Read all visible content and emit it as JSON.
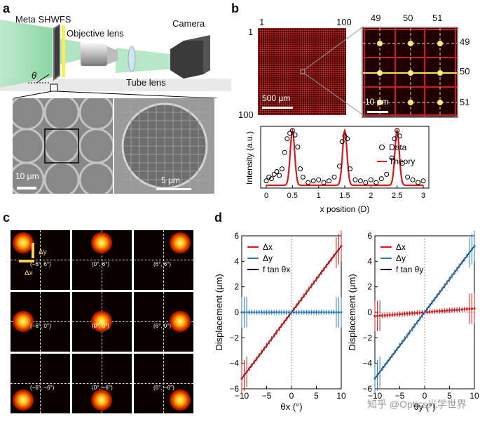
{
  "panels": {
    "a": "a",
    "b": "b",
    "c": "c",
    "d": "d"
  },
  "panel_a": {
    "label_meta": "Meta SHWFS",
    "label_objective": "Objective lens",
    "label_camera": "Camera",
    "label_tube": "Tube lens",
    "label_theta": "θ",
    "scalebar_left": "10 μm",
    "scalebar_right": "5 μm"
  },
  "panel_b": {
    "big_top_left": "1",
    "big_top_right": "100",
    "big_left_top": "1",
    "big_left_bottom": "100",
    "big_scalebar": "500 μm",
    "zoom_cols": [
      "49",
      "50",
      "51"
    ],
    "zoom_rows": [
      "49",
      "50",
      "51"
    ],
    "zoom_scalebar": "10 μm"
  },
  "panel_c": {
    "labels": [
      "(−6°, 6°)",
      "(0°, 6°)",
      "(6°, 6°)",
      "(−6°, 0°)",
      "(0°, 0°)",
      "(6°, 0°)",
      "(−6°, −6°)",
      "(0°, −6°)",
      "(6°, −6°)"
    ],
    "arrow_dy": "Δy",
    "arrow_dx": "Δx"
  },
  "colors": {
    "red_curve": "#d7191c",
    "blue_curve": "#2c7bb6",
    "heat": "#ffdd55"
  },
  "watermark": "知乎 @Optics光学世界",
  "chart_data": [
    {
      "type": "line",
      "id": "b-intensity",
      "title": "",
      "xlabel": "x position (D)",
      "ylabel": "Intensity (a.u.)",
      "xlim": [
        0,
        3
      ],
      "xticks": [
        "0",
        "0.5",
        "1",
        "1.5",
        "2",
        "2.5",
        "3"
      ],
      "legend": [
        "Data",
        "Theory"
      ],
      "series": [
        {
          "name": "Theory",
          "peaks": [
            0.5,
            1.5,
            2.5
          ]
        },
        {
          "name": "Data",
          "x": [
            0.0,
            0.05,
            0.1,
            0.15,
            0.2,
            0.25,
            0.3,
            0.35,
            0.4,
            0.45,
            0.5,
            0.55,
            0.6,
            0.65,
            0.7,
            0.8,
            0.9,
            1.0,
            1.1,
            1.2,
            1.3,
            1.4,
            1.45,
            1.5,
            1.55,
            1.6,
            1.7,
            1.8,
            1.9,
            2.0,
            2.1,
            2.2,
            2.3,
            2.4,
            2.45,
            2.5,
            2.55,
            2.6,
            2.7,
            2.8,
            2.9,
            3.0
          ],
          "y": [
            0.08,
            0.15,
            0.12,
            0.2,
            0.25,
            0.18,
            0.3,
            0.6,
            0.85,
            0.95,
            1.0,
            0.92,
            0.7,
            0.3,
            0.15,
            0.05,
            0.08,
            0.1,
            0.05,
            0.08,
            0.15,
            0.35,
            0.8,
            0.9,
            0.85,
            0.3,
            0.1,
            0.08,
            0.05,
            0.1,
            0.05,
            0.12,
            0.2,
            0.5,
            0.85,
            1.0,
            0.9,
            0.4,
            0.15,
            0.1,
            0.05,
            0.08
          ]
        }
      ]
    },
    {
      "type": "line",
      "id": "d-left",
      "xlabel": "θx (°)",
      "ylabel": "Displacement (μm)",
      "xlim": [
        -10,
        10
      ],
      "ylim": [
        -6,
        6
      ],
      "xticks": [
        "−10",
        "−5",
        "0",
        "5",
        "10"
      ],
      "yticks": [
        "−6",
        "−4",
        "−2",
        "0",
        "2",
        "4",
        "6"
      ],
      "legend": [
        "Δx",
        "Δy",
        "f tan θx"
      ],
      "series": [
        {
          "name": "Δx",
          "slope": 0.52,
          "x_range": [
            -10,
            10
          ]
        },
        {
          "name": "Δy",
          "value": 0.0,
          "x_range": [
            -10,
            10
          ]
        },
        {
          "name": "f tan θx",
          "slope": 0.52
        }
      ]
    },
    {
      "type": "line",
      "id": "d-right",
      "xlabel": "θy (°)",
      "ylabel": "Displacement (μm)",
      "xlim": [
        -10,
        10
      ],
      "ylim": [
        -6,
        6
      ],
      "xticks": [
        "−10",
        "−5",
        "0",
        "5",
        "10"
      ],
      "yticks": [
        "−6",
        "−4",
        "−2",
        "0",
        "2",
        "4",
        "6"
      ],
      "legend": [
        "Δx",
        "Δy",
        "f tan θy"
      ],
      "series": [
        {
          "name": "Δx",
          "slope": 0.03,
          "x_range": [
            -10,
            10
          ]
        },
        {
          "name": "Δy",
          "slope": 0.52,
          "x_range": [
            -10,
            10
          ]
        },
        {
          "name": "f tan θy",
          "slope": 0.52
        }
      ]
    }
  ]
}
